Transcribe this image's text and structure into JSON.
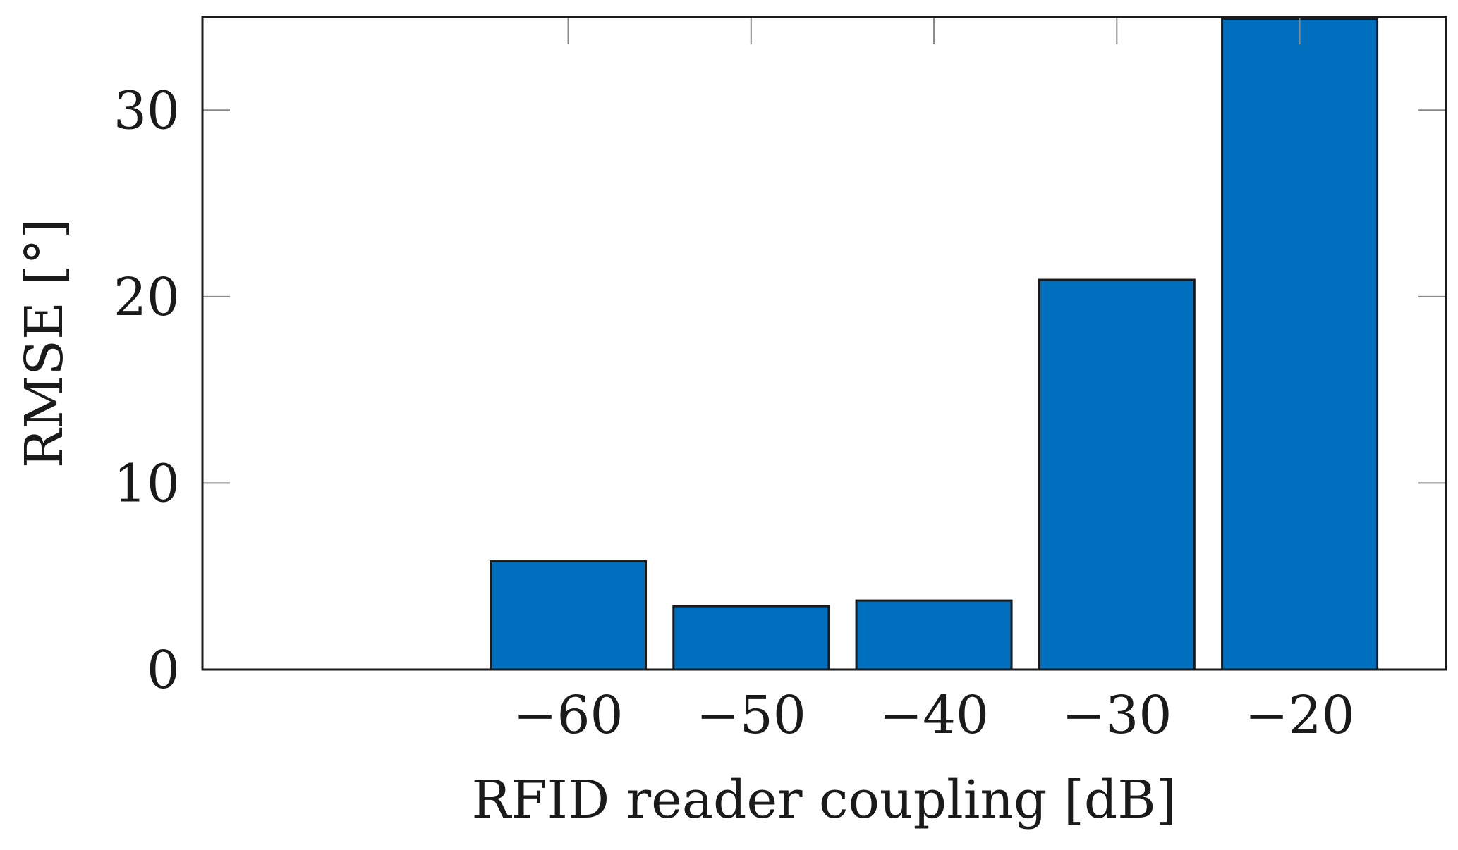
{
  "chart_data": {
    "type": "bar",
    "xlabel": "RFID reader coupling [dB]",
    "ylabel": "RMSE [°]",
    "categories": [
      "−60",
      "−50",
      "−40",
      "−30",
      "−20"
    ],
    "x": [
      -60,
      -50,
      -40,
      -30,
      -20
    ],
    "values": [
      5.8,
      3.4,
      3.7,
      20.9,
      34.9
    ],
    "xlim": [
      -80,
      -12
    ],
    "ylim": [
      0,
      35
    ],
    "yticks": [
      0,
      10,
      20,
      30
    ],
    "ytick_labels": [
      "0",
      "10",
      "20",
      "30"
    ],
    "bar_color": "#0070BE",
    "bar_edge_color": "#1a1a1a",
    "grid": false,
    "legend": false
  }
}
